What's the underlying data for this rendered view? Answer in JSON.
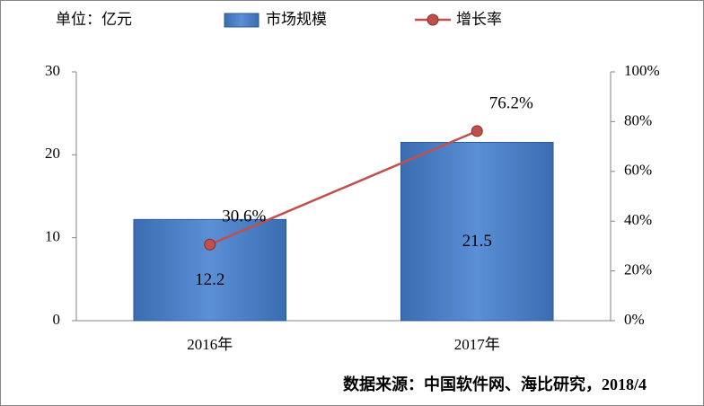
{
  "chart_data": {
    "type": "bar",
    "unit_label": "单位：亿元",
    "source": "数据来源：中国软件网、海比研究，2018/4",
    "categories": [
      "2016年",
      "2017年"
    ],
    "series": [
      {
        "name": "市场规模",
        "type": "bar",
        "color": "#4a7ebb",
        "values": [
          12.2,
          21.5
        ]
      },
      {
        "name": "增长率",
        "type": "line",
        "axis": "y2",
        "color": "#c0504d",
        "values": [
          30.6,
          76.2
        ],
        "value_labels": [
          "30.6%",
          "76.2%"
        ]
      }
    ],
    "ylim": [
      0,
      30
    ],
    "yticks": [
      0,
      10,
      20,
      30
    ],
    "y2lim": [
      0,
      100
    ],
    "y2ticks": [
      {
        "value": 0,
        "label": "0%"
      },
      {
        "value": 20,
        "label": "20%"
      },
      {
        "value": 40,
        "label": "40%"
      },
      {
        "value": 60,
        "label": "60%"
      },
      {
        "value": 80,
        "label": "80%"
      },
      {
        "value": 100,
        "label": "100%"
      }
    ],
    "grid": false
  }
}
